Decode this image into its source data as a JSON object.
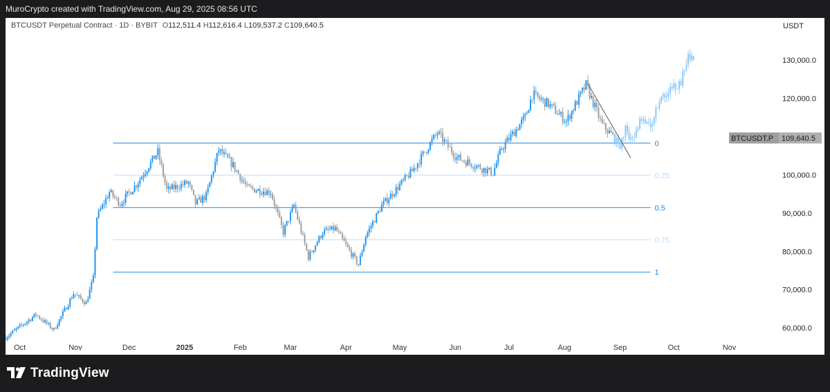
{
  "header": {
    "caption": "MuroCrypto created with TradingView.com, Aug 29, 2025 08:56 UTC"
  },
  "legend": {
    "symbol": "BTCUSDT Perpetual Contract · 1D · BYBIT",
    "open_label": "O",
    "open": "112,511.4",
    "high_label": "H",
    "high": "112,616.4",
    "low_label": "L",
    "low": "109,537.2",
    "close_label": "C",
    "close": "109,640.5"
  },
  "price_scale": {
    "unit": "USDT",
    "ticks": [
      "130,000.0",
      "120,000.0",
      "100,000.0",
      "90,000.0",
      "80,000.0",
      "70,000.0",
      "60,000.0"
    ],
    "tick_values": [
      130000,
      120000,
      100000,
      90000,
      80000,
      70000,
      60000
    ]
  },
  "price_tag": {
    "symbol": "BTCUSDT.P",
    "price": "109,640.5",
    "price_value": 109640.5
  },
  "time_axis": {
    "labels": [
      "Oct",
      "Nov",
      "Dec",
      "2025",
      "Feb",
      "Mar",
      "Apr",
      "May",
      "Jun",
      "Jul",
      "Aug",
      "Sep",
      "Oct",
      "Nov"
    ],
    "bold": [
      false,
      false,
      false,
      true,
      false,
      false,
      false,
      false,
      false,
      false,
      false,
      false,
      false,
      false
    ]
  },
  "footer": {
    "brand": "TradingView"
  },
  "colors": {
    "up": "#2196f3",
    "down": "#9e9e9e",
    "projection": "#90caf9",
    "fib": "#1e88e5",
    "fib_light": "#bbdefb"
  },
  "chart_data": {
    "type": "candlestick",
    "title": "BTCUSDT Perpetual Contract · 1D · BYBIT",
    "ylabel": "USDT",
    "ylim": [
      53000,
      141000
    ],
    "x_range": [
      "2024-09-23",
      "2025-11-12"
    ],
    "grid": false,
    "fib_levels": [
      {
        "label": "0",
        "ratio": 0,
        "price": 108300
      },
      {
        "label": "0.25",
        "ratio": 0.25,
        "price": 99900
      },
      {
        "label": "0.5",
        "ratio": 0.5,
        "price": 91450
      },
      {
        "label": "0.75",
        "ratio": 0.75,
        "price": 83050
      },
      {
        "label": "1",
        "ratio": 1,
        "price": 74600
      }
    ],
    "fib_range": [
      "2024-11-22",
      "2025-09-18"
    ],
    "trendline": {
      "from": [
        "2025-08-14",
        123800
      ],
      "to": [
        "2025-09-07",
        104400
      ]
    },
    "price_path": [
      [
        "2024-09-23",
        57500
      ],
      [
        "2024-10-10",
        63500
      ],
      [
        "2024-10-20",
        59500
      ],
      [
        "2024-10-31",
        69000
      ],
      [
        "2024-11-07",
        66500
      ],
      [
        "2024-11-11",
        73000
      ],
      [
        "2024-11-13",
        89000
      ],
      [
        "2024-11-20",
        95500
      ],
      [
        "2024-11-26",
        92500
      ],
      [
        "2024-12-05",
        97500
      ],
      [
        "2024-12-17",
        106000
      ],
      [
        "2024-12-22",
        96000
      ],
      [
        "2025-01-03",
        98000
      ],
      [
        "2025-01-07",
        92500
      ],
      [
        "2025-01-13",
        94500
      ],
      [
        "2025-01-20",
        106500
      ],
      [
        "2025-01-28",
        102500
      ],
      [
        "2025-02-05",
        96500
      ],
      [
        "2025-02-18",
        95500
      ],
      [
        "2025-02-25",
        85000
      ],
      [
        "2025-03-03",
        92000
      ],
      [
        "2025-03-11",
        78500
      ],
      [
        "2025-03-19",
        85000
      ],
      [
        "2025-03-26",
        86000
      ],
      [
        "2025-04-08",
        76500
      ],
      [
        "2025-04-12",
        84000
      ],
      [
        "2025-04-21",
        92000
      ],
      [
        "2025-05-08",
        101000
      ],
      [
        "2025-05-22",
        111000
      ],
      [
        "2025-06-02",
        104500
      ],
      [
        "2025-06-22",
        100500
      ],
      [
        "2025-06-27",
        107000
      ],
      [
        "2025-07-10",
        115000
      ],
      [
        "2025-07-14",
        121000
      ],
      [
        "2025-07-23",
        118500
      ],
      [
        "2025-08-02",
        114000
      ],
      [
        "2025-08-13",
        123500
      ],
      [
        "2025-08-22",
        113000
      ],
      [
        "2025-08-29",
        109640.5
      ]
    ],
    "projection_path": [
      [
        "2025-08-29",
        109640.5
      ],
      [
        "2025-09-01",
        108000
      ],
      [
        "2025-09-04",
        112000
      ],
      [
        "2025-09-08",
        109000
      ],
      [
        "2025-09-12",
        114000
      ],
      [
        "2025-09-18",
        113000
      ],
      [
        "2025-09-24",
        121000
      ],
      [
        "2025-10-01",
        123000
      ],
      [
        "2025-10-05",
        124500
      ],
      [
        "2025-10-09",
        131000
      ],
      [
        "2025-10-12",
        129500
      ]
    ]
  }
}
